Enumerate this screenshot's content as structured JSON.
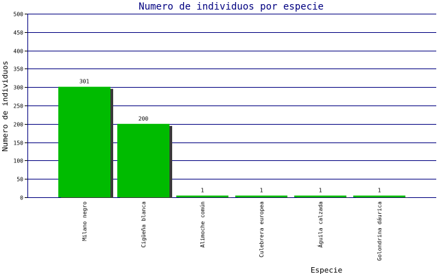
{
  "chart_data": {
    "type": "bar",
    "title": "Numero de individuos por especie",
    "xlabel": "Especie",
    "ylabel": "Numero de individuos",
    "ylim": [
      0,
      500
    ],
    "yticks": [
      0,
      50,
      100,
      150,
      200,
      250,
      300,
      350,
      400,
      450,
      500
    ],
    "grid": true,
    "legend": "none",
    "categories": [
      "Milano negro",
      "Cigüeña blanca",
      "Alimoche común",
      "Culebrera europea",
      "Águila calzada",
      "Golondrina dáurica"
    ],
    "values": [
      301,
      200,
      1,
      1,
      1,
      1
    ],
    "data_labels": [
      "301",
      "200",
      "1",
      "1",
      "1",
      "1"
    ]
  },
  "colors": {
    "bar": "#00bb00",
    "bar_shadow": "#3a3a3a",
    "grid": "#000080",
    "title": "#000080",
    "axis_text": "#000000"
  }
}
